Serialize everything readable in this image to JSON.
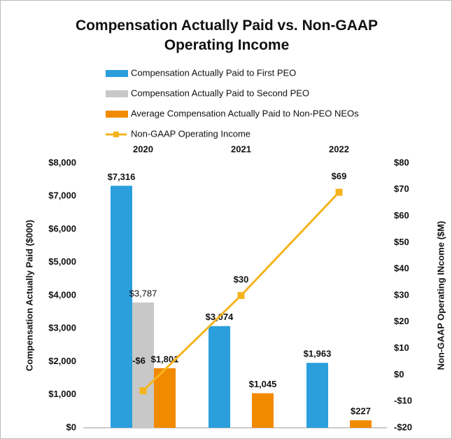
{
  "chart_data": {
    "type": "bar",
    "title": "Compensation Actually Paid vs. Non-GAAP Operating Income",
    "y_label": "Compensation Actually Paid ($000)",
    "y2_label": "Non-GAAP Operating INcome ($M)",
    "categories": [
      "2020",
      "2021",
      "2022"
    ],
    "ylim": [
      0,
      8000
    ],
    "yticks": [
      {
        "value": 0,
        "label": "$0"
      },
      {
        "value": 1000,
        "label": "$1,000"
      },
      {
        "value": 2000,
        "label": "$2,000"
      },
      {
        "value": 3000,
        "label": "$3,000"
      },
      {
        "value": 4000,
        "label": "$4,000"
      },
      {
        "value": 5000,
        "label": "$5,000"
      },
      {
        "value": 6000,
        "label": "$6,000"
      },
      {
        "value": 7000,
        "label": "$7,000"
      },
      {
        "value": 8000,
        "label": "$8,000"
      }
    ],
    "y2lim": [
      -20,
      80
    ],
    "y2ticks": [
      {
        "value": -20,
        "label": "-$20"
      },
      {
        "value": -10,
        "label": "-$10"
      },
      {
        "value": 0,
        "label": "$0"
      },
      {
        "value": 10,
        "label": "$10"
      },
      {
        "value": 20,
        "label": "$20"
      },
      {
        "value": 30,
        "label": "$30"
      },
      {
        "value": 40,
        "label": "$40"
      },
      {
        "value": 50,
        "label": "$50"
      },
      {
        "value": 60,
        "label": "$60"
      },
      {
        "value": 70,
        "label": "$70"
      },
      {
        "value": 80,
        "label": "$80"
      }
    ],
    "series": [
      {
        "name": "Compensation Actually Paid to First PEO",
        "color": "#2a9fdc",
        "values": [
          7316,
          3074,
          1963
        ],
        "value_labels": [
          "$7,316",
          "$3,074",
          "$1,963"
        ]
      },
      {
        "name": "Compensation Actually Paid to Second PEO",
        "color": "#c8c8c8",
        "values": [
          3787,
          null,
          null
        ],
        "value_labels": [
          "$3,787",
          null,
          null
        ]
      },
      {
        "name": "Average Compensation Actually Paid to Non-PEO NEOs",
        "color": "#f28a00",
        "values": [
          1801,
          1045,
          227
        ],
        "value_labels": [
          "$1,801",
          "$1,045",
          "$227"
        ]
      },
      {
        "name": "Non-GAAP Operating Income",
        "color": "#f5b41e",
        "type": "line",
        "axis": "y2",
        "values": [
          -6,
          30,
          69
        ],
        "value_labels": [
          "-$6",
          "$30",
          "$69"
        ]
      }
    ]
  }
}
